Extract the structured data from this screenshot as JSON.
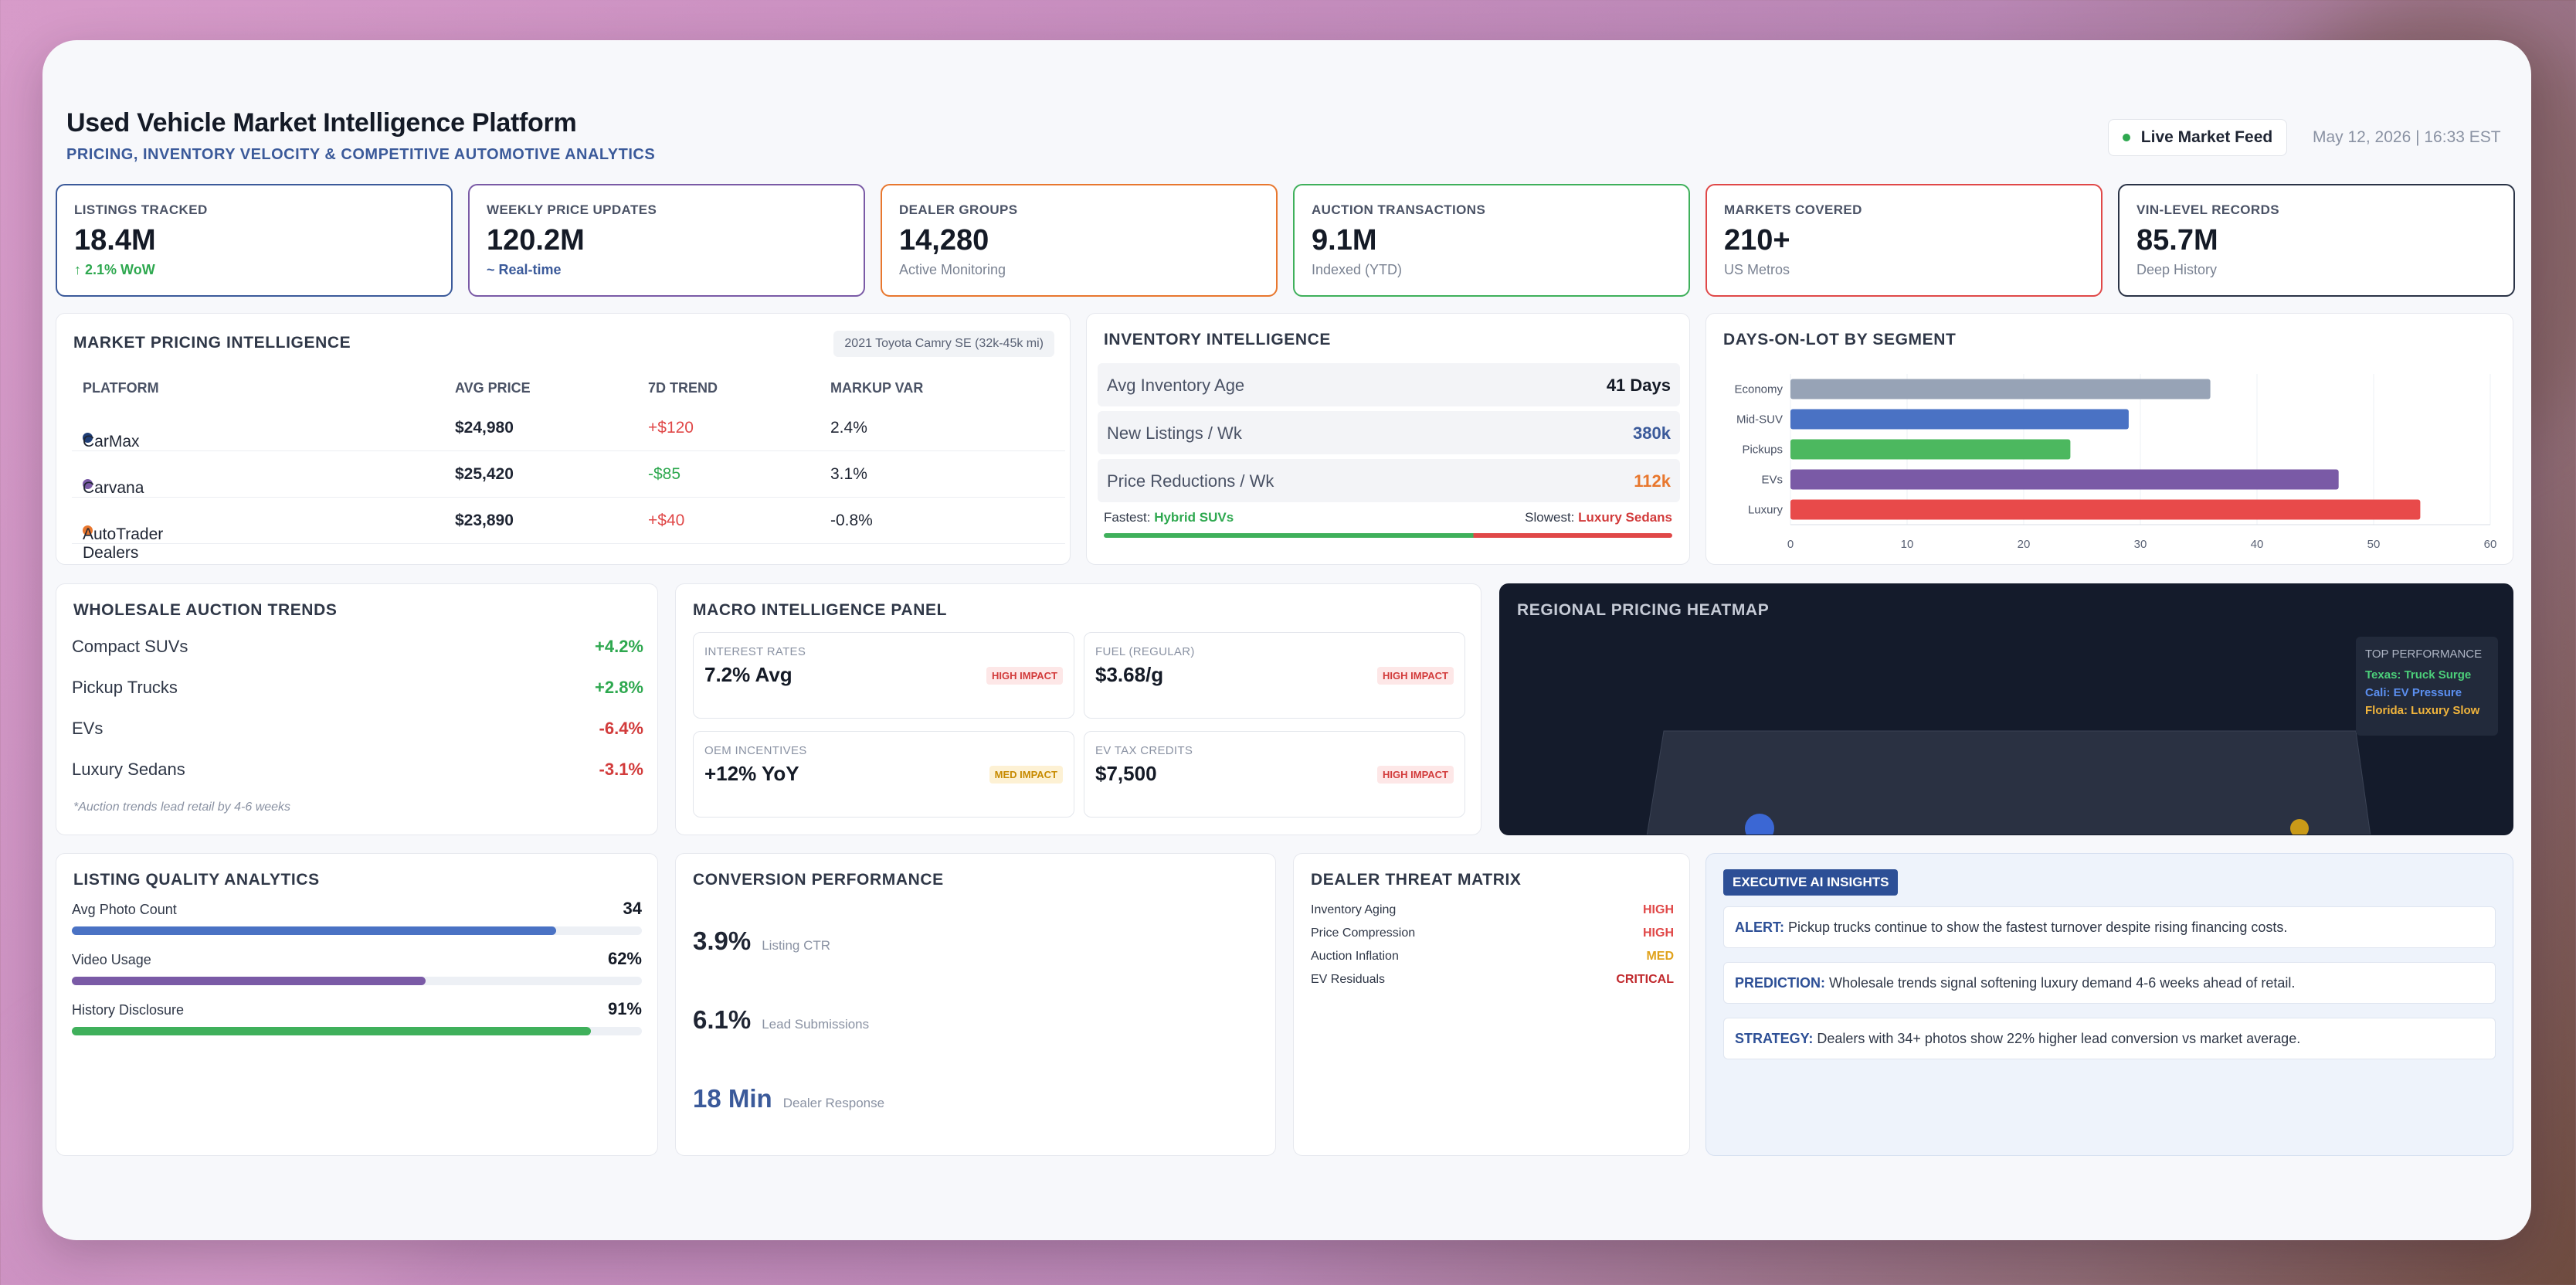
{
  "header": {
    "title": "Used Vehicle Market Intelligence Platform",
    "subtitle": "PRICING, INVENTORY VELOCITY & COMPETITIVE AUTOMOTIVE ANALYTICS",
    "live_label": "Live Market Feed",
    "timestamp": "May 12, 2026 | 16:33 EST"
  },
  "kpis": [
    {
      "label": "LISTINGS TRACKED",
      "value": "18.4M",
      "sub": "↑ 2.1% WoW",
      "color": "#3b5a9a",
      "sub_color": "#2ea84f"
    },
    {
      "label": "WEEKLY PRICE UPDATES",
      "value": "120.2M",
      "sub": "~ Real-time",
      "color": "#7a5aa6",
      "sub_color": "#3b5a9a"
    },
    {
      "label": "DEALER GROUPS",
      "value": "14,280",
      "sub": "Active Monitoring",
      "color": "#e8772e",
      "sub_color": "#7a8292"
    },
    {
      "label": "AUCTION TRANSACTIONS",
      "value": "9.1M",
      "sub": "Indexed (YTD)",
      "color": "#3fb05b",
      "sub_color": "#7a8292"
    },
    {
      "label": "MARKETS COVERED",
      "value": "210+",
      "sub": "US Metros",
      "color": "#e04848",
      "sub_color": "#7a8292"
    },
    {
      "label": "VIN-LEVEL RECORDS",
      "value": "85.7M",
      "sub": "Deep History",
      "color": "#2a3346",
      "sub_color": "#7a8292"
    }
  ],
  "pricing": {
    "title": "MARKET PRICING INTELLIGENCE",
    "chip": "2021 Toyota Camry SE (32k-45k mi)",
    "columns": [
      "PLATFORM",
      "AVG PRICE",
      "7D TREND",
      "MARKUP VAR"
    ],
    "rows": [
      {
        "platform": "CarMax",
        "dot": "#1f3f78",
        "price": "$24,980",
        "trend": "+$120",
        "trend_color": "#e04848",
        "markup": "2.4%"
      },
      {
        "platform": "Carvana",
        "dot": "#7a5aa6",
        "price": "$25,420",
        "trend": "-$85",
        "trend_color": "#2ea84f",
        "markup": "3.1%"
      },
      {
        "platform": "AutoTrader Dealers",
        "dot": "#e8772e",
        "price": "$23,890",
        "trend": "+$40",
        "trend_color": "#e04848",
        "markup": "-0.8%"
      }
    ]
  },
  "inventory": {
    "title": "INVENTORY INTELLIGENCE",
    "rows": [
      {
        "label": "Avg Inventory Age",
        "value": "41 Days",
        "color": "#141a26"
      },
      {
        "label": "New Listings / Wk",
        "value": "380k",
        "color": "#3b5a9a"
      },
      {
        "label": "Price Reductions / Wk",
        "value": "112k",
        "color": "#e8772e"
      }
    ],
    "fastest_label": "Fastest:",
    "fastest_value": "Hybrid SUVs",
    "slowest_label": "Slowest:",
    "slowest_value": "Luxury Sedans"
  },
  "chart_data": {
    "type": "bar",
    "title": "DAYS-ON-LOT BY SEGMENT",
    "orientation": "horizontal",
    "categories": [
      "Economy",
      "Mid-SUV",
      "Pickups",
      "EVs",
      "Luxury"
    ],
    "values": [
      36,
      29,
      24,
      47,
      54
    ],
    "colors": [
      "#97a3b6",
      "#4a72c4",
      "#4cb85f",
      "#7a5aa6",
      "#e84a4a"
    ],
    "xlim": [
      0,
      60
    ],
    "xticks": [
      "0",
      "10",
      "20",
      "30",
      "40",
      "50",
      "60"
    ],
    "grid": true
  },
  "wholesale": {
    "title": "WHOLESALE AUCTION TRENDS",
    "rows": [
      {
        "label": "Compact SUVs",
        "value": "+4.2%",
        "color": "#2ea84f"
      },
      {
        "label": "Pickup Trucks",
        "value": "+2.8%",
        "color": "#2ea84f"
      },
      {
        "label": "EVs",
        "value": "-6.4%",
        "color": "#d23b3b"
      },
      {
        "label": "Luxury Sedans",
        "value": "-3.1%",
        "color": "#d23b3b"
      }
    ],
    "note": "*Auction trends lead retail by 4-6 weeks"
  },
  "macro": {
    "title": "MACRO INTELLIGENCE PANEL",
    "cards": [
      {
        "label": "INTEREST RATES",
        "value": "7.2% Avg",
        "badge": "HIGH IMPACT",
        "level": "high"
      },
      {
        "label": "FUEL (REGULAR)",
        "value": "$3.68/g",
        "badge": "HIGH IMPACT",
        "level": "high"
      },
      {
        "label": "OEM INCENTIVES",
        "value": "+12% YoY",
        "badge": "MED IMPACT",
        "level": "med"
      },
      {
        "label": "EV TAX CREDITS",
        "value": "$7,500",
        "badge": "HIGH IMPACT",
        "level": "high"
      }
    ]
  },
  "heatmap": {
    "title": "REGIONAL PRICING HEATMAP",
    "legend_title": "TOP PERFORMANCE",
    "legend": [
      {
        "text": "Texas: Truck Surge",
        "color": "#4cd07a"
      },
      {
        "text": "Cali: EV Pressure",
        "color": "#5b8ff0"
      },
      {
        "text": "Florida: Luxury Slow",
        "color": "#f0b43c"
      }
    ]
  },
  "quality": {
    "title": "LISTING QUALITY ANALYTICS",
    "rows": [
      {
        "label": "Avg Photo Count",
        "value": "34",
        "fill": 0.85,
        "color": "#4a72c4"
      },
      {
        "label": "Video Usage",
        "value": "62%",
        "fill": 0.62,
        "color": "#7a5aa6"
      },
      {
        "label": "History Disclosure",
        "value": "91%",
        "fill": 0.91,
        "color": "#3fb05b"
      }
    ]
  },
  "conversion": {
    "title": "CONVERSION PERFORMANCE",
    "rows": [
      {
        "value": "3.9%",
        "label": "Listing CTR",
        "color": "#1f2533"
      },
      {
        "value": "6.1%",
        "label": "Lead Submissions",
        "color": "#1f2533"
      },
      {
        "value": "18 Min",
        "label": "Dealer Response",
        "color": "#3b5a9a"
      }
    ]
  },
  "threat": {
    "title": "DEALER THREAT MATRIX",
    "rows": [
      {
        "label": "Inventory Aging",
        "value": "HIGH",
        "color": "#e04848"
      },
      {
        "label": "Price Compression",
        "value": "HIGH",
        "color": "#e04848"
      },
      {
        "label": "Auction Inflation",
        "value": "MED",
        "color": "#e0a21b"
      },
      {
        "label": "EV Residuals",
        "value": "CRITICAL",
        "color": "#c0282c"
      }
    ]
  },
  "insights": {
    "title": "EXECUTIVE AI INSIGHTS",
    "items": [
      {
        "tag": "ALERT:",
        "text": "Pickup trucks continue to show the fastest turnover despite rising financing costs."
      },
      {
        "tag": "PREDICTION:",
        "text": "Wholesale trends signal softening luxury demand 4-6 weeks ahead of retail."
      },
      {
        "tag": "STRATEGY:",
        "text": "Dealers with 34+ photos show 22% higher lead conversion vs market average."
      }
    ]
  }
}
